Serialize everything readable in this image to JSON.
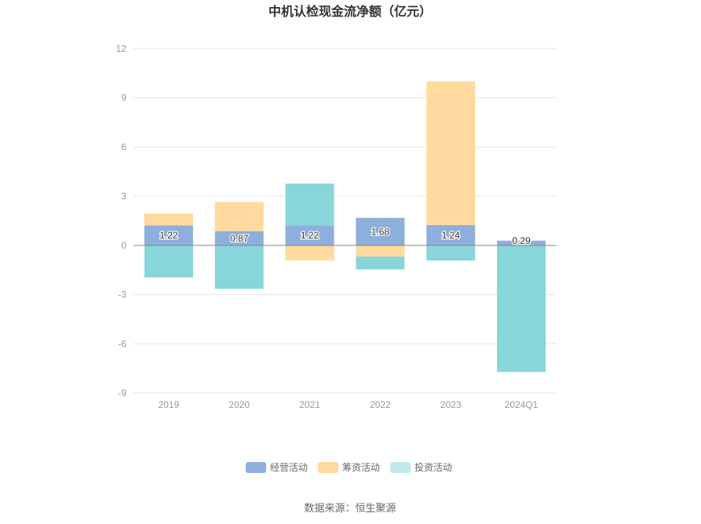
{
  "chart_data": {
    "type": "bar",
    "stacked": true,
    "title": "中机认检现金流净额（亿元）",
    "categories": [
      "2019",
      "2020",
      "2021",
      "2022",
      "2023",
      "2024Q1"
    ],
    "series": [
      {
        "name": "经营活动",
        "color": "#8eaedc",
        "values": [
          1.22,
          0.87,
          1.22,
          1.68,
          1.24,
          0.29
        ]
      },
      {
        "name": "筹资活动",
        "color": "#ffd99e",
        "values": [
          0.72,
          1.78,
          -0.92,
          -0.68,
          8.76,
          0.0
        ]
      },
      {
        "name": "投资活动",
        "color": "#88d5da",
        "values": [
          -1.95,
          -2.65,
          2.55,
          -0.78,
          -0.92,
          -7.72
        ]
      }
    ],
    "data_labels": [
      "1.22",
      "0.87",
      "1.22",
      "1.68",
      "1.24",
      "0.29"
    ],
    "ylim": [
      -9,
      12
    ],
    "yticks": [
      12,
      9,
      6,
      3,
      0,
      -3,
      -6,
      -9
    ],
    "ytick_labels": [
      "12",
      "9",
      "6",
      "3",
      "0",
      "-3",
      "-6",
      "-9"
    ],
    "xlabel": "",
    "ylabel": "",
    "grid": true,
    "legend_position": "bottom-center"
  },
  "legend_items": [
    "经营活动",
    "筹资活动",
    "投资活动"
  ],
  "source_text": "数据来源：恒生聚源"
}
